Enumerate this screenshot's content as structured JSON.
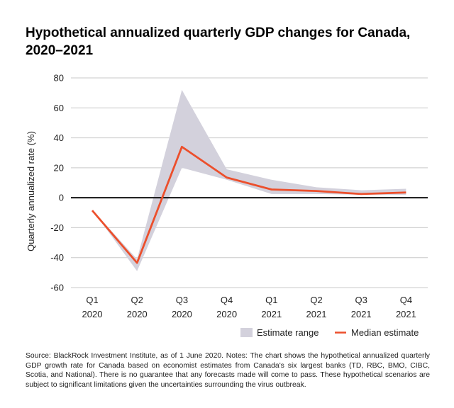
{
  "title": "Hypothetical annualized quarterly GDP changes for Canada, 2020–2021",
  "source_note": "Source: BlackRock Investment Institute, as of 1 June 2020. Notes: The chart shows the hypothetical annualized quarterly GDP growth rate for Canada based on economist estimates from Canada's six largest banks (TD, RBC, BMO, CIBC, Scotia, and National). There is no guarantee that any forecasts made will come to pass. These hypothetical scenarios are subject to significant limitations given the uncertainties surrounding the virus outbreak.",
  "chart_data": {
    "type": "line",
    "title": "Hypothetical annualized quarterly GDP changes for Canada, 2020–2021",
    "xlabel": "",
    "ylabel": "Quarterly annualized rate (%)",
    "categories": [
      [
        "Q1",
        "2020"
      ],
      [
        "Q2",
        "2020"
      ],
      [
        "Q3",
        "2020"
      ],
      [
        "Q4",
        "2020"
      ],
      [
        "Q1",
        "2021"
      ],
      [
        "Q2",
        "2021"
      ],
      [
        "Q3",
        "2021"
      ],
      [
        "Q4",
        "2021"
      ]
    ],
    "ylim": [
      -60,
      80
    ],
    "yticks": [
      80,
      60,
      40,
      20,
      0,
      -20,
      -40,
      -60
    ],
    "grid": true,
    "legend_position": "bottom-right",
    "series": [
      {
        "name": "Estimate range",
        "kind": "band",
        "color": "#d3d1dc",
        "lower": [
          -8,
          -49,
          20,
          12,
          2.5,
          2.5,
          2,
          2
        ],
        "upper": [
          -8,
          -41,
          72,
          19,
          12,
          7,
          5,
          6
        ]
      },
      {
        "name": "Median estimate",
        "kind": "line",
        "color": "#ec4f2c",
        "values": [
          -8.5,
          -43.5,
          34,
          13.5,
          5.5,
          4.5,
          2.5,
          3.5
        ]
      }
    ],
    "zero_line_color": "#111111"
  }
}
